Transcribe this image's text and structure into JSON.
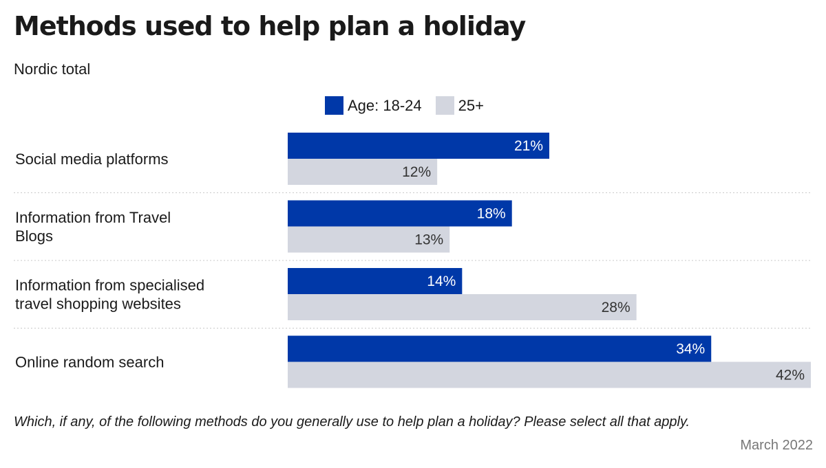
{
  "colors": {
    "series_young": "#0038a8",
    "series_older": "#d3d6df",
    "text": "#1a1a1a",
    "muted": "#777777"
  },
  "footer": {
    "question": "Which, if any, of the following methods do you generally use to help plan a holiday? Please select all that apply.",
    "date": "March 2022"
  },
  "chart_data": {
    "type": "bar",
    "orientation": "horizontal",
    "title": "Methods used to help plan a holiday",
    "subtitle": "Nordic total",
    "categories": [
      "Social media platforms",
      "Information from Travel Blogs",
      "Information from specialised travel shopping websites",
      "Online random search"
    ],
    "series": [
      {
        "name": "Age: 18-24",
        "values": [
          21,
          18,
          14,
          34
        ],
        "labels": [
          "21%",
          "18%",
          "14%",
          "34%"
        ],
        "color": "#0038a8"
      },
      {
        "name": "25+",
        "values": [
          12,
          13,
          28,
          42
        ],
        "labels": [
          "12%",
          "13%",
          "28%",
          "42%"
        ],
        "color": "#d3d6df"
      }
    ],
    "xlim": [
      0,
      42
    ],
    "unit": "%",
    "legend_position": "top",
    "grid": false
  }
}
